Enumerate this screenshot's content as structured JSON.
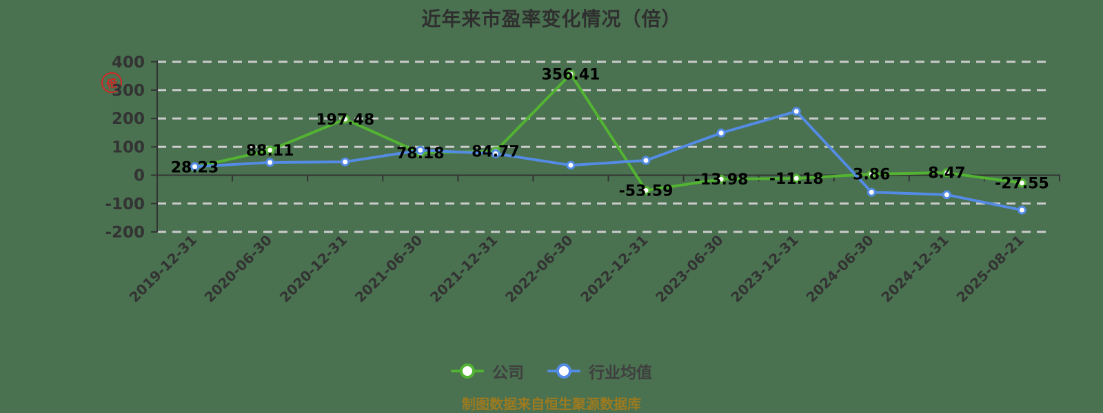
{
  "title": "近年来市盈率变化情况（倍）",
  "unit_stamp": "倍",
  "footer": "制图数据来自恒生聚源数据库",
  "colors": {
    "background": "#4a7150",
    "company_green": "#53b332",
    "industry_blue": "#548be4",
    "gridline": "#cccccc",
    "axis": "#333333",
    "data_label": "#000000",
    "tick_label": "#333333",
    "footer_text": "#9c7a20",
    "stamp_red": "#e01f1f"
  },
  "legend": {
    "items": [
      {
        "label": "公司",
        "color": "#53b332"
      },
      {
        "label": "行业均值",
        "color": "#548be4"
      }
    ]
  },
  "chart_data": {
    "type": "line",
    "title": "近年来市盈率变化情况（倍）",
    "categories": [
      "2019-12-31",
      "2020-06-30",
      "2020-12-31",
      "2021-06-30",
      "2021-12-31",
      "2022-06-30",
      "2022-12-31",
      "2023-06-30",
      "2023-12-31",
      "2024-06-30",
      "2024-12-31",
      "2025-08-21"
    ],
    "series": [
      {
        "name": "公司",
        "color": "#53b332",
        "values": [
          28.23,
          88.11,
          197.48,
          78.18,
          84.77,
          356.41,
          -53.59,
          -13.98,
          -11.18,
          3.86,
          8.47,
          -27.55
        ],
        "labeled": true
      },
      {
        "name": "行业均值",
        "color": "#548be4",
        "values": [
          30,
          45,
          47,
          88,
          76,
          35,
          52,
          149,
          225,
          -60,
          -69,
          -123
        ],
        "labeled": false
      }
    ],
    "ylim": [
      -200,
      400
    ],
    "yticks": [
      400,
      300,
      200,
      100,
      0,
      -100,
      -200
    ],
    "xlabel": "",
    "ylabel": "",
    "grid": "horizontal-dashed",
    "legend_position": "bottom"
  }
}
